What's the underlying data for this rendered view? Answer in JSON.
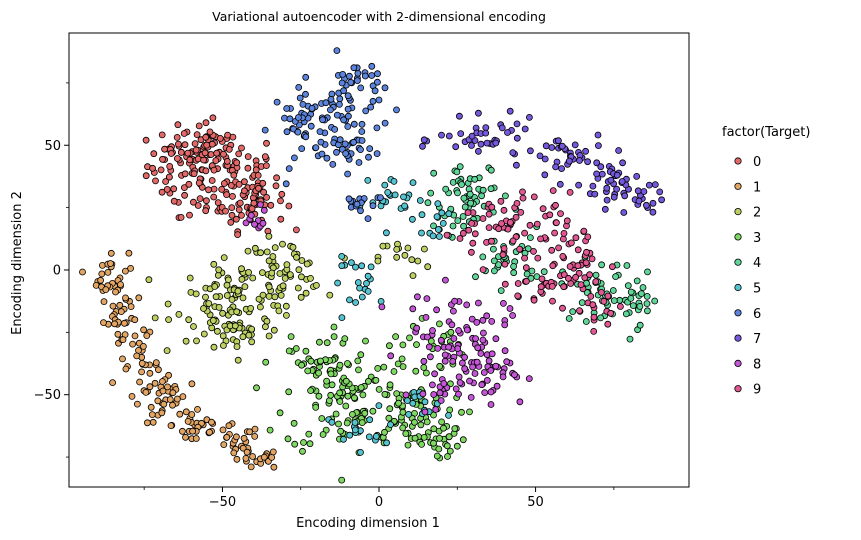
{
  "chart_data": {
    "type": "scatter",
    "title": "Variational autoencoder with 2-dimensional encoding",
    "xlabel": "Encoding dimension 1",
    "ylabel": "Encoding dimension 2",
    "xlim": [
      -99,
      99
    ],
    "ylim": [
      -87,
      95
    ],
    "xticks": [
      -50,
      0,
      50
    ],
    "xtick_labels": [
      "−50",
      "0",
      "50"
    ],
    "yticks": [
      -50,
      0,
      50
    ],
    "ytick_labels": [
      "−50",
      "0",
      "50"
    ],
    "x_minor_ticks": [
      -75,
      -25,
      25,
      75
    ],
    "y_minor_ticks": [
      -75,
      -25,
      25,
      75
    ],
    "grid": false,
    "legend": {
      "title": "factor(Target)",
      "placement": "right",
      "entries": [
        "0",
        "1",
        "2",
        "3",
        "4",
        "5",
        "6",
        "7",
        "8",
        "9"
      ]
    },
    "series": [
      {
        "name": "0",
        "color": "#e36868",
        "clusters": [
          [
            -62,
            42,
            6,
            8,
            70
          ],
          [
            -48,
            36,
            8,
            10,
            90
          ],
          [
            -40,
            28,
            5,
            6,
            40
          ],
          [
            -55,
            50,
            4,
            4,
            25
          ]
        ]
      },
      {
        "name": "1",
        "color": "#e3a563",
        "clusters": [
          [
            -86,
            -2,
            3,
            5,
            25
          ],
          [
            -82,
            -18,
            3,
            8,
            35
          ],
          [
            -76,
            -38,
            3,
            6,
            30
          ],
          [
            -68,
            -52,
            3,
            5,
            30
          ],
          [
            -58,
            -62,
            4,
            5,
            30
          ],
          [
            -46,
            -70,
            4,
            4,
            25
          ],
          [
            -38,
            -76,
            3,
            2,
            15
          ]
        ]
      },
      {
        "name": "2",
        "color": "#bcd161",
        "clusters": [
          [
            -45,
            -12,
            10,
            8,
            100
          ],
          [
            -30,
            0,
            6,
            6,
            45
          ],
          [
            -48,
            -25,
            5,
            5,
            30
          ],
          [
            8,
            5,
            4,
            4,
            15
          ]
        ]
      },
      {
        "name": "3",
        "color": "#7ed861",
        "clusters": [
          [
            -10,
            -50,
            10,
            12,
            120
          ],
          [
            10,
            -60,
            8,
            8,
            70
          ],
          [
            15,
            -30,
            6,
            6,
            25
          ],
          [
            -20,
            -35,
            4,
            6,
            25
          ],
          [
            20,
            -70,
            5,
            3,
            15
          ]
        ]
      },
      {
        "name": "4",
        "color": "#5fd598",
        "clusters": [
          [
            30,
            30,
            6,
            6,
            45
          ],
          [
            42,
            5,
            5,
            6,
            35
          ],
          [
            70,
            -8,
            6,
            6,
            40
          ],
          [
            82,
            -12,
            4,
            5,
            25
          ],
          [
            22,
            18,
            4,
            4,
            15
          ]
        ]
      },
      {
        "name": "5",
        "color": "#55c4d1",
        "clusters": [
          [
            5,
            28,
            5,
            5,
            25
          ],
          [
            -5,
            -5,
            5,
            5,
            20
          ],
          [
            15,
            -55,
            4,
            4,
            15
          ],
          [
            -8,
            -65,
            4,
            4,
            15
          ],
          [
            20,
            20,
            3,
            3,
            10
          ]
        ]
      },
      {
        "name": "6",
        "color": "#5c84dc",
        "clusters": [
          [
            -22,
            58,
            6,
            8,
            60
          ],
          [
            -8,
            70,
            5,
            8,
            50
          ],
          [
            -10,
            48,
            4,
            4,
            25
          ],
          [
            -5,
            28,
            4,
            3,
            15
          ]
        ]
      },
      {
        "name": "7",
        "color": "#7558dc",
        "clusters": [
          [
            35,
            52,
            8,
            4,
            40
          ],
          [
            60,
            45,
            6,
            5,
            35
          ],
          [
            75,
            35,
            5,
            5,
            30
          ],
          [
            82,
            28,
            4,
            4,
            20
          ]
        ]
      },
      {
        "name": "8",
        "color": "#c455d6",
        "clusters": [
          [
            25,
            -25,
            8,
            8,
            70
          ],
          [
            35,
            -40,
            6,
            6,
            40
          ],
          [
            18,
            -50,
            4,
            4,
            20
          ],
          [
            -40,
            20,
            3,
            3,
            10
          ]
        ]
      },
      {
        "name": "9",
        "color": "#e15892",
        "clusters": [
          [
            45,
            15,
            8,
            8,
            50
          ],
          [
            62,
            2,
            6,
            8,
            45
          ],
          [
            50,
            -5,
            4,
            4,
            20
          ],
          [
            35,
            20,
            4,
            4,
            20
          ],
          [
            70,
            -15,
            4,
            4,
            15
          ]
        ]
      }
    ]
  }
}
